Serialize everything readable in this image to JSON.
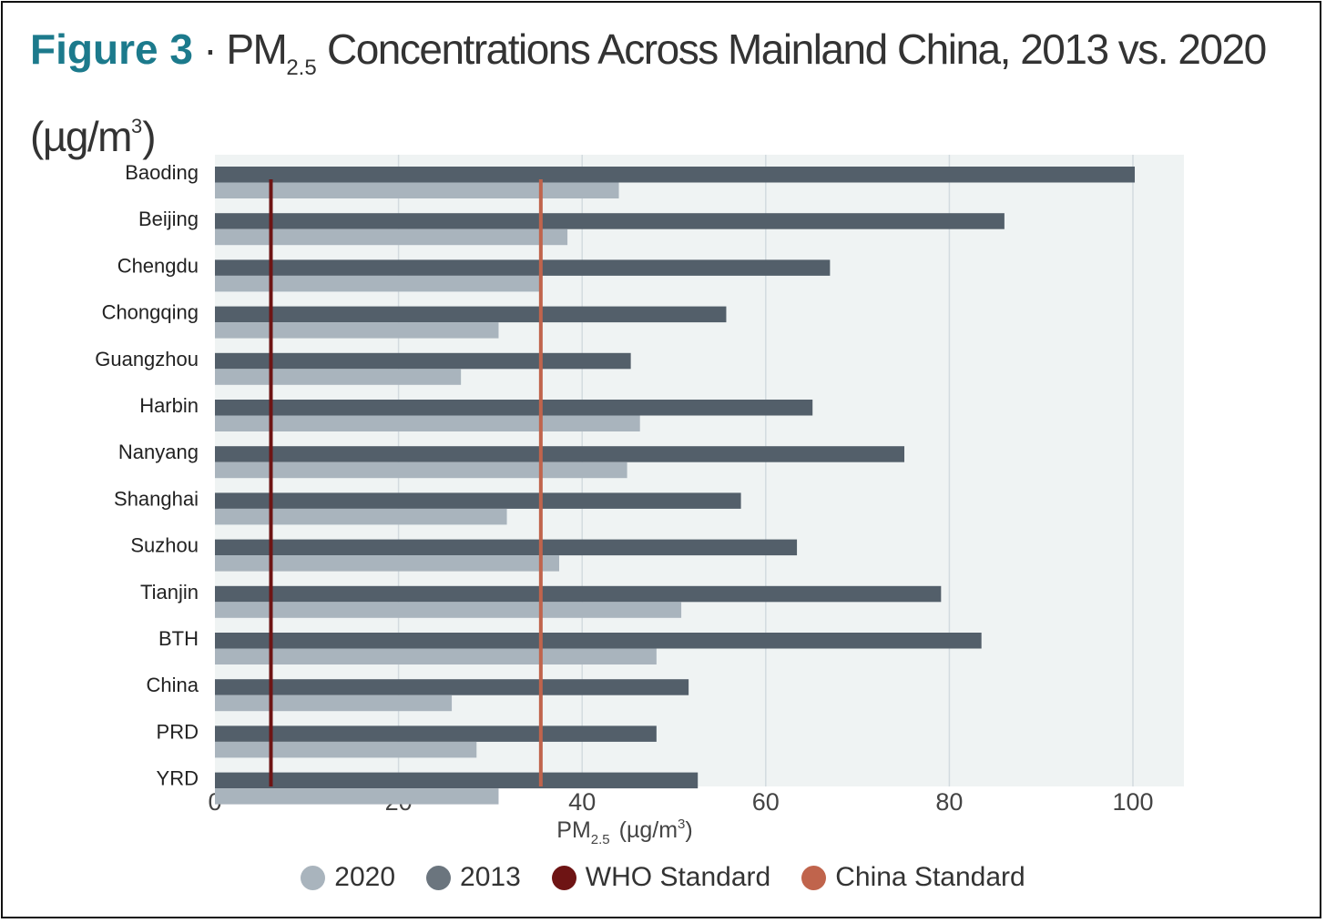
{
  "title": {
    "figure_label": "Figure 3",
    "separator": "·",
    "pm": "PM",
    "pm_sub": "2.5",
    "text_main": "Concentrations Across  Mainland China, 2013 vs. 2020",
    "unit_pre": "(µg/m",
    "unit_sup": "3",
    "unit_post": ")"
  },
  "colors": {
    "series_2020": "#a9b4bd",
    "series_2013": "#535f6a",
    "who": "#6e1414",
    "china": "#c0644c",
    "plot_bg": "#eff3f3",
    "grid": "#d3dbdf"
  },
  "chart_data": {
    "type": "bar",
    "orientation": "horizontal",
    "categories": [
      "Baoding",
      "Beijing",
      "Chengdu",
      "Chongqing",
      "Guangzhou",
      "Harbin",
      "Nanyang",
      "Shanghai",
      "Suzhou",
      "Tianjin",
      "BTH",
      "China",
      "PRD",
      "YRD"
    ],
    "series": [
      {
        "name": "2013",
        "values": [
          100.2,
          86,
          67,
          55.7,
          45.3,
          65.1,
          75.1,
          57.3,
          63.4,
          79.1,
          83.5,
          51.6,
          48.1,
          52.6
        ]
      },
      {
        "name": "2020",
        "values": [
          44,
          38.4,
          35.4,
          30.9,
          26.8,
          46.3,
          44.9,
          31.8,
          37.5,
          50.8,
          48.1,
          25.8,
          28.5,
          30.9
        ]
      }
    ],
    "reference_lines": [
      {
        "name": "WHO Standard",
        "value": 6.1
      },
      {
        "name": "China Standard",
        "value": 35.5
      }
    ],
    "xlabel_pre": "PM",
    "xlabel_sub": "2.5",
    "xlabel_post": "(µg/m",
    "xlabel_sup": "3",
    "xlabel_end": ")",
    "xlim": [
      0,
      105.5
    ],
    "xticks": [
      0,
      20,
      40,
      60,
      80,
      100
    ],
    "grid": true,
    "legend_placement": "bottom",
    "legend": [
      "2020",
      "2013",
      "WHO Standard",
      "China Standard"
    ]
  }
}
